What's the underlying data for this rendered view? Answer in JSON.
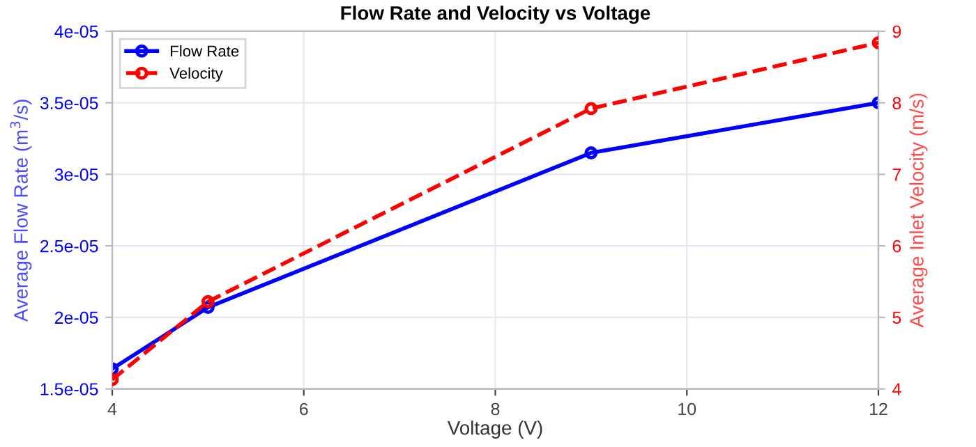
{
  "chart_data": {
    "type": "line",
    "title": "Flow Rate and Velocity vs Voltage",
    "xlabel": "Voltage (V)",
    "ylabel": "Average Flow Rate (m$^{3}$/s)",
    "y2label": "Average Inlet Velocity (m/s)",
    "x": [
      4,
      5,
      9,
      12
    ],
    "series": [
      {
        "name": "Flow Rate",
        "color": "#0000ff",
        "values": [
          1.64e-05,
          2.07e-05,
          3.15e-05,
          3.5e-05
        ],
        "line_style": "solid",
        "marker": "circle"
      },
      {
        "name": "Velocity",
        "color": "#ff0000",
        "values": [
          4.13,
          5.22,
          7.92,
          8.84
        ],
        "axis": "y2",
        "line_style": "dashed",
        "marker": "circle"
      }
    ],
    "xlim": [
      4,
      12
    ],
    "xticks": [
      4,
      6,
      8,
      10,
      12
    ],
    "ylim": [
      1.5e-05,
      4e-05
    ],
    "yticks": [
      {
        "value": 1.5e-05,
        "label": "1.5e-05"
      },
      {
        "value": 2e-05,
        "label": "2e-05"
      },
      {
        "value": 2.5e-05,
        "label": "2.5e-05"
      },
      {
        "value": 3e-05,
        "label": "3e-05"
      },
      {
        "value": 3.5e-05,
        "label": "3.5e-05"
      },
      {
        "value": 4e-05,
        "label": "4e-05"
      }
    ],
    "y2lim": [
      4,
      9
    ],
    "y2ticks": [
      4,
      5,
      6,
      7,
      8,
      9
    ],
    "grid": true,
    "legend": "top left"
  }
}
